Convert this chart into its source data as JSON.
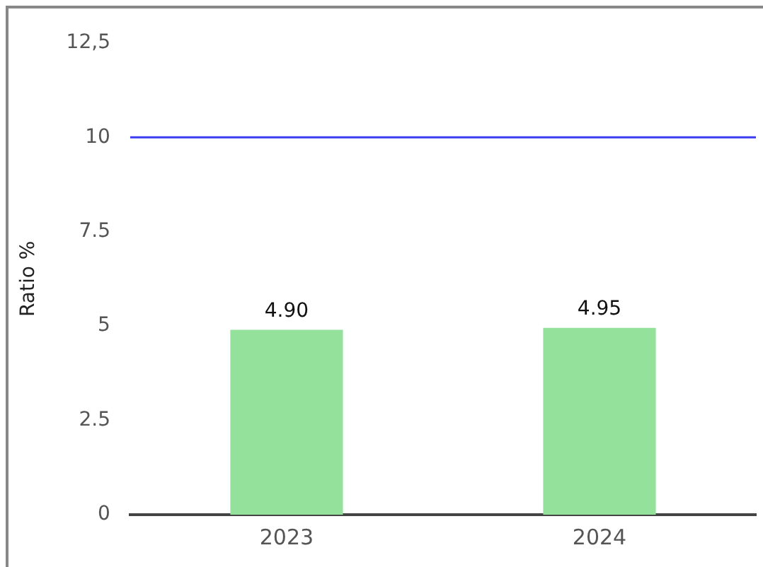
{
  "chart_data": {
    "type": "bar",
    "ylabel": "Ratio %",
    "categories": [
      "2023",
      "2024"
    ],
    "values": [
      4.9,
      4.95
    ],
    "color": "#94e19c",
    "value_labels": [
      "4.90",
      "4.95"
    ],
    "ylim": [
      0,
      12.5
    ],
    "yticks": [
      0,
      2.5,
      5,
      7.5,
      10,
      {
        "value": 12.5,
        "label": "12,5"
      }
    ],
    "ref_lines": [
      {
        "axis": "y",
        "value": 10,
        "color": "#3b3bf0"
      }
    ],
    "grid": false,
    "legend": false
  }
}
